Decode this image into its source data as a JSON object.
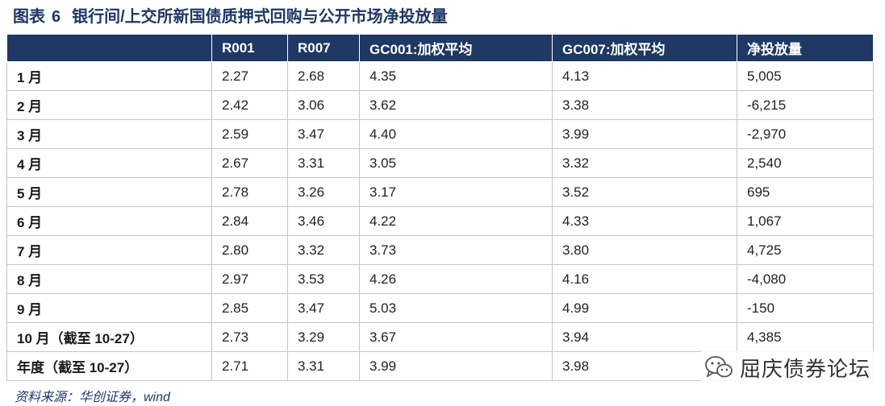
{
  "title": {
    "prefix": "图表",
    "number": "6",
    "text": "银行间/上交所新国债质押式回购与公开市场净投放量"
  },
  "table": {
    "headers": [
      "",
      "R001",
      "R007",
      "GC001:加权平均",
      "GC007:加权平均",
      "净投放量"
    ],
    "rows": [
      [
        "1 月",
        "2.27",
        "2.68",
        "4.35",
        "4.13",
        "5,005"
      ],
      [
        "2 月",
        "2.42",
        "3.06",
        "3.62",
        "3.38",
        "-6,215"
      ],
      [
        "3 月",
        "2.59",
        "3.47",
        "4.40",
        "3.99",
        "-2,970"
      ],
      [
        "4 月",
        "2.67",
        "3.31",
        "3.05",
        "3.32",
        "2,540"
      ],
      [
        "5 月",
        "2.78",
        "3.26",
        "3.17",
        "3.52",
        "695"
      ],
      [
        "6 月",
        "2.84",
        "3.46",
        "4.22",
        "4.33",
        "1,067"
      ],
      [
        "7 月",
        "2.80",
        "3.32",
        "3.73",
        "3.80",
        "4,725"
      ],
      [
        "8 月",
        "2.97",
        "3.53",
        "4.26",
        "4.16",
        "-4,080"
      ],
      [
        "9 月",
        "2.85",
        "3.47",
        "5.03",
        "4.99",
        "-150"
      ],
      [
        "10 月（截至 10-27）",
        "2.73",
        "3.29",
        "3.67",
        "3.94",
        "4,385"
      ],
      [
        "年度（截至 10-27）",
        "2.71",
        "3.31",
        "3.99",
        "3.98",
        ""
      ]
    ]
  },
  "source": "资料来源：华创证券，wind",
  "watermark": {
    "icon": "wechat-icon",
    "text": "屈庆债券论坛"
  },
  "colors": {
    "header_bg": "#1f3864",
    "title": "#1f3864"
  }
}
